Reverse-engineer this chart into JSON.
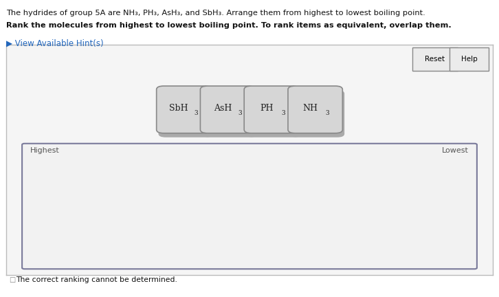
{
  "bg_color": "#ffffff",
  "widget_bg": "#f5f5f5",
  "widget_border": "#bbbbbb",
  "card_bg": "#d6d6d6",
  "card_border": "#888888",
  "card_shadow": "#aaaaaa",
  "rank_box_bg": "#f2f2f2",
  "rank_box_border": "#7a7a9a",
  "btn_bg": "#ebebeb",
  "btn_border": "#888888",
  "hint_color": "#2266bb",
  "text_color": "#111111",
  "gray_text": "#555555",
  "intro_line": "The hydrides of group 5A are NH₃, PH₃, AsH₃, and SbH₃. Arrange them from highest to lowest boiling point.",
  "bold_line": "Rank the molecules from highest to lowest boiling point. To rank items as equivalent, overlap them.",
  "hint_line": "▶ View Available Hint(s)",
  "reset_label": "Reset",
  "help_label": "Help",
  "highest_label": "Highest",
  "lowest_label": "Lowest",
  "checkbox_label": "The correct ranking cannot be determined.",
  "cards": [
    {
      "main": "SbH",
      "sub": "3"
    },
    {
      "main": "AsH",
      "sub": "3"
    },
    {
      "main": "PH",
      "sub": "3"
    },
    {
      "main": "NH",
      "sub": "3"
    }
  ]
}
